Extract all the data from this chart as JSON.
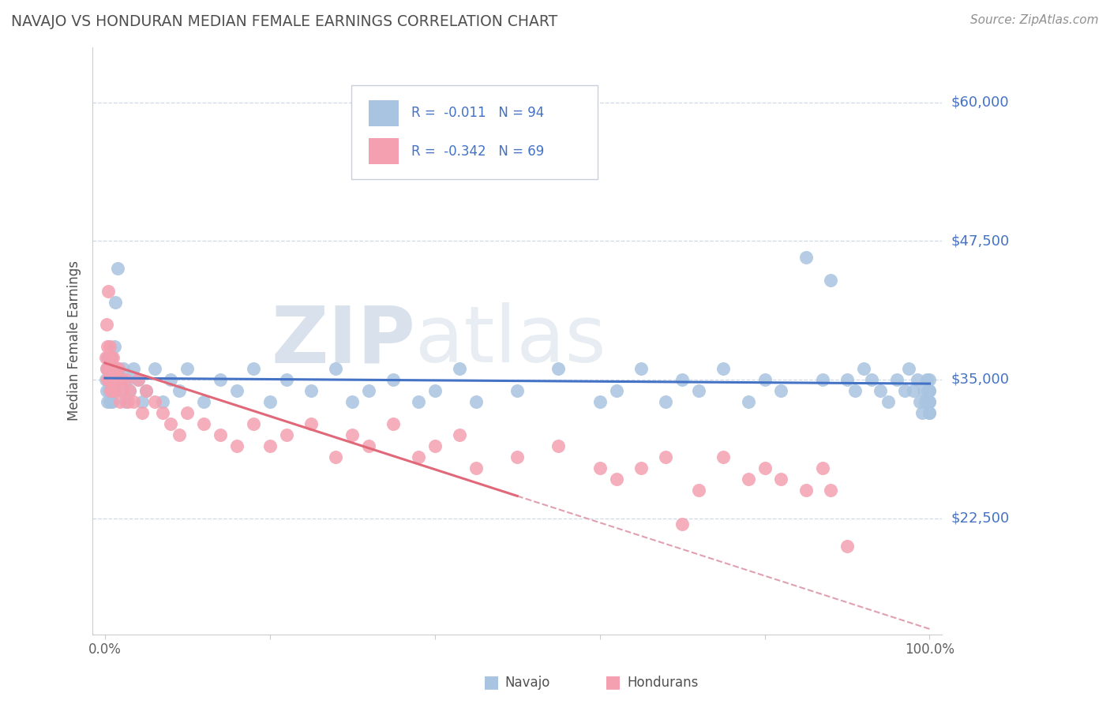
{
  "title": "NAVAJO VS HONDURAN MEDIAN FEMALE EARNINGS CORRELATION CHART",
  "source": "Source: ZipAtlas.com",
  "ylabel": "Median Female Earnings",
  "yticks": [
    22500,
    35000,
    47500,
    60000
  ],
  "ytick_labels": [
    "$22,500",
    "$35,000",
    "$47,500",
    "$60,000"
  ],
  "ylim": [
    12000,
    65000
  ],
  "navajo_R": -0.011,
  "navajo_N": 94,
  "honduran_R": -0.342,
  "honduran_N": 69,
  "navajo_color": "#a8c4e0",
  "honduran_color": "#f4a0b0",
  "navajo_line_color": "#4472c4",
  "honduran_line_color": "#e06878",
  "honduran_trend_dashed_color": "#e0a0b0",
  "title_color": "#505050",
  "source_color": "#909090",
  "ytick_color": "#4472c4",
  "xtick_color": "#606060",
  "background_color": "#ffffff",
  "grid_color": "#d0d8e8",
  "watermark_zip": "ZIP",
  "watermark_atlas": "atlas",
  "legend_label1": "Navajo",
  "legend_label2": "Hondurans",
  "navajo_x": [
    0.001,
    0.002,
    0.002,
    0.003,
    0.003,
    0.004,
    0.004,
    0.005,
    0.005,
    0.005,
    0.006,
    0.006,
    0.007,
    0.007,
    0.008,
    0.008,
    0.009,
    0.009,
    0.01,
    0.01,
    0.012,
    0.013,
    0.015,
    0.016,
    0.018,
    0.02,
    0.022,
    0.025,
    0.028,
    0.03,
    0.035,
    0.04,
    0.045,
    0.05,
    0.06,
    0.07,
    0.08,
    0.09,
    0.1,
    0.12,
    0.14,
    0.16,
    0.18,
    0.2,
    0.22,
    0.25,
    0.28,
    0.3,
    0.32,
    0.35,
    0.38,
    0.4,
    0.43,
    0.45,
    0.5,
    0.55,
    0.6,
    0.62,
    0.65,
    0.68,
    0.7,
    0.72,
    0.75,
    0.78,
    0.8,
    0.82,
    0.85,
    0.87,
    0.88,
    0.9,
    0.91,
    0.92,
    0.93,
    0.94,
    0.95,
    0.96,
    0.97,
    0.975,
    0.98,
    0.985,
    0.988,
    0.991,
    0.993,
    0.995,
    0.997,
    0.998,
    0.999,
    0.9993,
    0.9996,
    0.9998,
    0.9999,
    0.99995,
    0.99998,
    1.0
  ],
  "navajo_y": [
    35000,
    36000,
    34000,
    33000,
    37000,
    35000,
    36000,
    34000,
    35000,
    36000,
    35000,
    33000,
    36000,
    34000,
    35000,
    37000,
    33000,
    36000,
    34000,
    35000,
    38000,
    42000,
    45000,
    36000,
    35000,
    34000,
    36000,
    33000,
    35000,
    34000,
    36000,
    35000,
    33000,
    34000,
    36000,
    33000,
    35000,
    34000,
    36000,
    33000,
    35000,
    34000,
    36000,
    33000,
    35000,
    34000,
    36000,
    33000,
    34000,
    35000,
    33000,
    34000,
    36000,
    33000,
    34000,
    36000,
    33000,
    34000,
    36000,
    33000,
    35000,
    34000,
    36000,
    33000,
    35000,
    34000,
    46000,
    35000,
    44000,
    35000,
    34000,
    36000,
    35000,
    34000,
    33000,
    35000,
    34000,
    36000,
    34000,
    35000,
    33000,
    32000,
    34000,
    33000,
    35000,
    34000,
    33000,
    32000,
    34000,
    33000,
    35000,
    34000,
    33000,
    32000
  ],
  "honduran_x": [
    0.001,
    0.002,
    0.002,
    0.003,
    0.003,
    0.004,
    0.004,
    0.005,
    0.005,
    0.006,
    0.006,
    0.007,
    0.007,
    0.008,
    0.008,
    0.009,
    0.009,
    0.01,
    0.01,
    0.012,
    0.013,
    0.015,
    0.016,
    0.018,
    0.02,
    0.022,
    0.025,
    0.028,
    0.03,
    0.035,
    0.04,
    0.045,
    0.05,
    0.06,
    0.07,
    0.08,
    0.09,
    0.1,
    0.12,
    0.14,
    0.16,
    0.18,
    0.2,
    0.22,
    0.25,
    0.28,
    0.3,
    0.32,
    0.35,
    0.38,
    0.4,
    0.43,
    0.45,
    0.5,
    0.55,
    0.6,
    0.62,
    0.65,
    0.68,
    0.7,
    0.72,
    0.75,
    0.78,
    0.8,
    0.82,
    0.85,
    0.87,
    0.88,
    0.9
  ],
  "honduran_y": [
    37000,
    40000,
    36000,
    38000,
    35000,
    43000,
    36000,
    37000,
    35000,
    38000,
    35000,
    36000,
    34000,
    35000,
    37000,
    34000,
    36000,
    35000,
    37000,
    34000,
    36000,
    35000,
    36000,
    33000,
    35000,
    34000,
    35000,
    33000,
    34000,
    33000,
    35000,
    32000,
    34000,
    33000,
    32000,
    31000,
    30000,
    32000,
    31000,
    30000,
    29000,
    31000,
    29000,
    30000,
    31000,
    28000,
    30000,
    29000,
    31000,
    28000,
    29000,
    30000,
    27000,
    28000,
    29000,
    27000,
    26000,
    27000,
    28000,
    22000,
    25000,
    28000,
    26000,
    27000,
    26000,
    25000,
    27000,
    25000,
    20000
  ]
}
